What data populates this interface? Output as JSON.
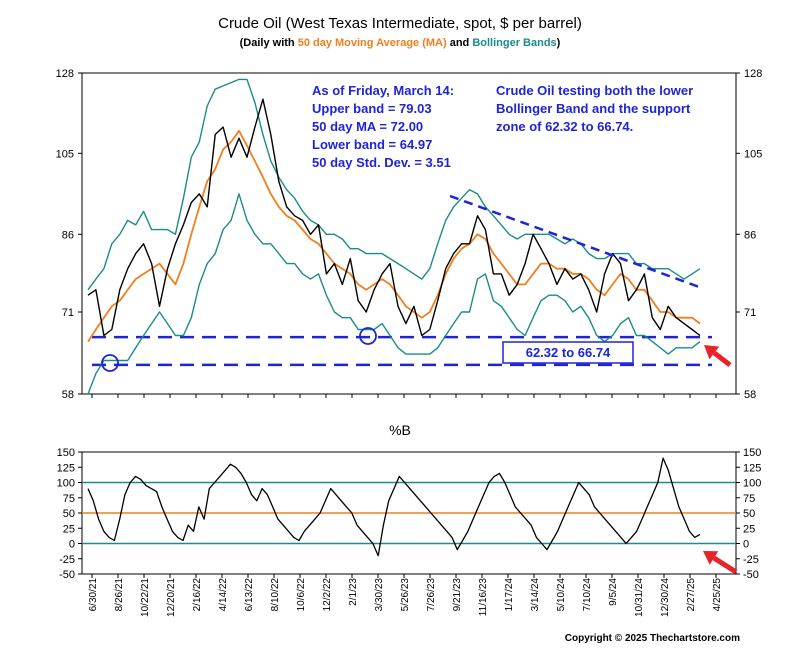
{
  "chart_data": [
    {
      "type": "line",
      "title": "Crude Oil (West Texas Intermediate, spot, $ per barrel)",
      "subtitle": {
        "prefix": "(Daily with ",
        "ma": "50 day Moving Average (MA)",
        "mid": " and ",
        "bb": "Bollinger Bands",
        "suffix": ")"
      },
      "y_scale": "log",
      "ylim": [
        58,
        128
      ],
      "yticks": [
        58,
        71,
        86,
        105,
        128
      ],
      "x_tick_labels": [
        "6/30/21",
        "8/26/21",
        "10/22/21",
        "12/20/21",
        "2/16/22",
        "4/14/22",
        "6/13/22",
        "8/10/22",
        "10/6/22",
        "12/2/22",
        "2/1/23",
        "3/30/23",
        "5/26/23",
        "7/26/23",
        "9/21/23",
        "11/16/23",
        "1/17/24",
        "3/14/24",
        "5/10/24",
        "7/10/24",
        "9/5/24",
        "10/31/24",
        "12/30/24",
        "2/27/25",
        "4/25/25"
      ],
      "colors": {
        "price": "#000000",
        "ma": "#f07f1e",
        "bands": "#1a8c8a",
        "annotation": "#1f24d6",
        "arrow": "#e8232a"
      },
      "series": [
        {
          "role": "price",
          "values": [
            74,
            75,
            67,
            68,
            75,
            79,
            82,
            84,
            80,
            72,
            79,
            84,
            88,
            93,
            95,
            92,
            110,
            112,
            104,
            109,
            104,
            112,
            120,
            110,
            98,
            92,
            90,
            89,
            86,
            88,
            78,
            80,
            76,
            81,
            73,
            71,
            75,
            78,
            80,
            72,
            69,
            72,
            67,
            68,
            73,
            79,
            82,
            84,
            84,
            90,
            87,
            78,
            78,
            74,
            76,
            80,
            86,
            83,
            80,
            76,
            79,
            77,
            78,
            75,
            71,
            78,
            82,
            80,
            73,
            75,
            78,
            70,
            68,
            72,
            70,
            69,
            68,
            67
          ]
        },
        {
          "role": "ma",
          "values": [
            66,
            68,
            70,
            72,
            73,
            75,
            77,
            78,
            79,
            80,
            78,
            76,
            80,
            86,
            92,
            98,
            101,
            106,
            108,
            111,
            107,
            103,
            99,
            95,
            92,
            90,
            89,
            87,
            85,
            84,
            82,
            80,
            79,
            78,
            76,
            75,
            76,
            77,
            76,
            74,
            72,
            71,
            70,
            71,
            74,
            78,
            81,
            83,
            84,
            86,
            85,
            82,
            80,
            78,
            76,
            76,
            78,
            80,
            80,
            79,
            79,
            78,
            78,
            77,
            75,
            74,
            76,
            78,
            77,
            75,
            75,
            73,
            71,
            71,
            70,
            70,
            70,
            69
          ]
        },
        {
          "role": "upper-band",
          "values": [
            75,
            77,
            79,
            84,
            86,
            89,
            88,
            91,
            87,
            87,
            87,
            86,
            94,
            104,
            108,
            118,
            123,
            124,
            125,
            126,
            126,
            119,
            110,
            103,
            99,
            96,
            94,
            91,
            89,
            88,
            86,
            86,
            85,
            83,
            83,
            82,
            82,
            82,
            81,
            80,
            79,
            78,
            77,
            79,
            84,
            89,
            92,
            94,
            96,
            95,
            92,
            90,
            88,
            86,
            85,
            86,
            86,
            86,
            86,
            85,
            84,
            85,
            84,
            82,
            81,
            81,
            82,
            82,
            82,
            80,
            80,
            79,
            79,
            79,
            78,
            77,
            78,
            79
          ]
        },
        {
          "role": "lower-band",
          "values": [
            58,
            61,
            63,
            63,
            63,
            63,
            65,
            67,
            69,
            71,
            69,
            67,
            67,
            70,
            76,
            80,
            82,
            87,
            89,
            95,
            89,
            86,
            84,
            84,
            82,
            80,
            80,
            78,
            77,
            78,
            74,
            71,
            70,
            70,
            68,
            68,
            68,
            69,
            67,
            65,
            64,
            64,
            64,
            64,
            65,
            67,
            69,
            71,
            71,
            77,
            78,
            73,
            72,
            70,
            68,
            67,
            70,
            73,
            74,
            74,
            73,
            71,
            72,
            70,
            67,
            66,
            67,
            69,
            70,
            67,
            67,
            66,
            65,
            64,
            65,
            65,
            65,
            66
          ]
        }
      ],
      "horizontal_lines": [
        62.32,
        66.74
      ],
      "annotations": {
        "stats": [
          "As of Friday, March 14:",
          "Upper band = 79.03",
          "50 day MA = 72.00",
          "Lower band = 64.97",
          "50 day Std. Dev. = 3.51"
        ],
        "note": [
          "Crude Oil testing both the lower",
          "Bollinger Band and the support",
          "zone of 62.32 to 66.74."
        ],
        "box_label": "62.32 to 66.74"
      }
    },
    {
      "type": "line",
      "title": "%B",
      "ylim": [
        -50,
        150
      ],
      "yticks": [
        -50,
        -25,
        0,
        25,
        50,
        75,
        100,
        125,
        150
      ],
      "reference_lines": [
        0,
        50,
        100
      ],
      "series": [
        {
          "role": "percent-b",
          "values": [
            90,
            70,
            40,
            20,
            10,
            5,
            40,
            80,
            100,
            110,
            105,
            95,
            90,
            85,
            60,
            40,
            20,
            10,
            5,
            30,
            20,
            60,
            40,
            90,
            100,
            110,
            120,
            130,
            125,
            115,
            100,
            80,
            70,
            90,
            80,
            60,
            40,
            30,
            20,
            10,
            5,
            20,
            30,
            40,
            50,
            70,
            90,
            80,
            70,
            60,
            50,
            30,
            20,
            10,
            0,
            -20,
            30,
            70,
            90,
            110,
            100,
            90,
            80,
            70,
            60,
            50,
            40,
            30,
            20,
            10,
            -10,
            5,
            20,
            40,
            60,
            80,
            100,
            110,
            115,
            100,
            80,
            60,
            50,
            40,
            30,
            10,
            0,
            -10,
            5,
            20,
            40,
            60,
            80,
            100,
            90,
            80,
            60,
            50,
            40,
            30,
            20,
            10,
            0,
            10,
            20,
            40,
            60,
            80,
            100,
            140,
            120,
            90,
            60,
            40,
            20,
            10,
            15
          ]
        }
      ]
    }
  ],
  "copyright": "Copyright © 2025 Thechartstore.com"
}
